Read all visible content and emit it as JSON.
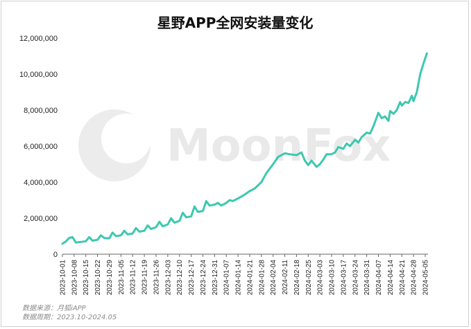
{
  "chart_data": {
    "type": "line",
    "title": "星野APP全网安装量变化",
    "xlabel": "",
    "ylabel": "",
    "ylim": [
      0,
      12000000
    ],
    "yticks": [
      0,
      2000000,
      4000000,
      6000000,
      8000000,
      10000000,
      12000000
    ],
    "ytick_labels": [
      "0",
      "2,000,000",
      "4,000,000",
      "6,000,000",
      "8,000,000",
      "10,000,000",
      "12,000,000"
    ],
    "xtick_labels": [
      "2023-10-01",
      "2023-10-08",
      "2023-10-15",
      "2023-10-22",
      "2023-10-29",
      "2023-11-05",
      "2023-11-12",
      "2023-11-19",
      "2023-11-26",
      "2023-12-03",
      "2023-12-10",
      "2023-12-17",
      "2023-12-24",
      "2023-12-31",
      "2024-01-07",
      "2024-01-14",
      "2024-01-21",
      "2024-01-28",
      "2024-02-04",
      "2024-02-11",
      "2024-02-18",
      "2024-02-25",
      "2024-03-03",
      "2024-03-10",
      "2024-03-17",
      "2024-03-24",
      "2024-03-31",
      "2024-04-07",
      "2024-04-14",
      "2024-04-21",
      "2024-04-28",
      "2024-05-05"
    ],
    "grid": false,
    "legend": "none",
    "line_color": "#3cc8b0",
    "series": [
      {
        "x": [
          "2023-10-01",
          "2023-10-03",
          "2023-10-05",
          "2023-10-07",
          "2023-10-09",
          "2023-10-12",
          "2023-10-15",
          "2023-10-17",
          "2023-10-19",
          "2023-10-22",
          "2023-10-24",
          "2023-10-26",
          "2023-10-29",
          "2023-10-31",
          "2023-11-02",
          "2023-11-05",
          "2023-11-07",
          "2023-11-09",
          "2023-11-12",
          "2023-11-14",
          "2023-11-16",
          "2023-11-19",
          "2023-11-21",
          "2023-11-23",
          "2023-11-26",
          "2023-11-28",
          "2023-11-30",
          "2023-12-03",
          "2023-12-05",
          "2023-12-07",
          "2023-12-10",
          "2023-12-12",
          "2023-12-14",
          "2023-12-17",
          "2023-12-19",
          "2023-12-21",
          "2023-12-24",
          "2023-12-26",
          "2023-12-28",
          "2023-12-31",
          "2024-01-02",
          "2024-01-04",
          "2024-01-07",
          "2024-01-09",
          "2024-01-11",
          "2024-01-14",
          "2024-01-17",
          "2024-01-21",
          "2024-01-24",
          "2024-01-28",
          "2024-01-31",
          "2024-02-04",
          "2024-02-07",
          "2024-02-11",
          "2024-02-14",
          "2024-02-18",
          "2024-02-21",
          "2024-02-23",
          "2024-02-25",
          "2024-02-27",
          "2024-03-01",
          "2024-03-03",
          "2024-03-05",
          "2024-03-07",
          "2024-03-10",
          "2024-03-12",
          "2024-03-14",
          "2024-03-17",
          "2024-03-19",
          "2024-03-21",
          "2024-03-24",
          "2024-03-26",
          "2024-03-28",
          "2024-03-31",
          "2024-04-02",
          "2024-04-04",
          "2024-04-06",
          "2024-04-07",
          "2024-04-09",
          "2024-04-11",
          "2024-04-13",
          "2024-04-14",
          "2024-04-16",
          "2024-04-18",
          "2024-04-20",
          "2024-04-21",
          "2024-04-23",
          "2024-04-25",
          "2024-04-27",
          "2024-04-28",
          "2024-04-30",
          "2024-05-02",
          "2024-05-04",
          "2024-05-06"
        ],
        "values": [
          580000,
          700000,
          900000,
          950000,
          650000,
          680000,
          720000,
          950000,
          750000,
          800000,
          1050000,
          900000,
          880000,
          1200000,
          1000000,
          1050000,
          1300000,
          1100000,
          1150000,
          1450000,
          1250000,
          1300000,
          1600000,
          1400000,
          1500000,
          1800000,
          1550000,
          1650000,
          2000000,
          1750000,
          1850000,
          2300000,
          2050000,
          2100000,
          2650000,
          2350000,
          2400000,
          2950000,
          2700000,
          2750000,
          2850000,
          2700000,
          2850000,
          3000000,
          2950000,
          3100000,
          3250000,
          3500000,
          3650000,
          4000000,
          4500000,
          5000000,
          5400000,
          5600000,
          5550000,
          5500000,
          5650000,
          5200000,
          4950000,
          5200000,
          4850000,
          5000000,
          5250000,
          5550000,
          5550000,
          5650000,
          5950000,
          5850000,
          6150000,
          6000000,
          6350000,
          6200000,
          6500000,
          6750000,
          6700000,
          7100000,
          7600000,
          7850000,
          7550000,
          7650000,
          7400000,
          7950000,
          7800000,
          8000000,
          8450000,
          8250000,
          8450000,
          8400000,
          8800000,
          8500000,
          9000000,
          10000000,
          10600000,
          11150000
        ]
      }
    ],
    "source": "数据来源：月狐iAPP",
    "period": "数据周期：2023.10-2024.05",
    "watermark": "MoonFox"
  }
}
